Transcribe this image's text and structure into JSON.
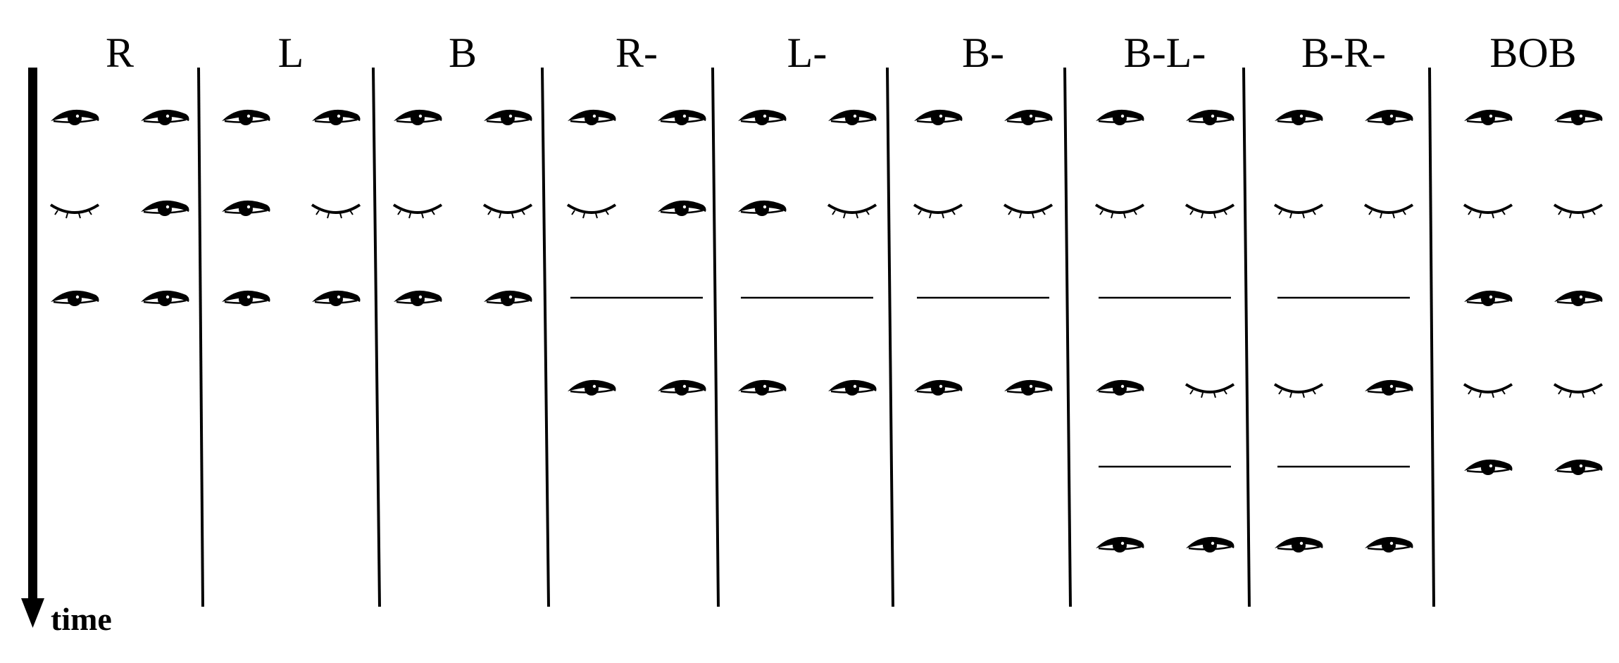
{
  "time_label": "time",
  "columns": [
    {
      "label": "R",
      "rows": [
        "open-open",
        "closed-open",
        "open-open"
      ]
    },
    {
      "label": "L",
      "rows": [
        "open-open",
        "open-closed",
        "open-open"
      ]
    },
    {
      "label": "B",
      "rows": [
        "open-open",
        "closed-closed",
        "open-open"
      ]
    },
    {
      "label": "R-",
      "rows": [
        "open-open",
        "closed-open",
        "pause",
        "open-open"
      ]
    },
    {
      "label": "L-",
      "rows": [
        "open-open",
        "open-closed",
        "pause",
        "open-open"
      ]
    },
    {
      "label": "B-",
      "rows": [
        "open-open",
        "closed-closed",
        "pause",
        "open-open"
      ]
    },
    {
      "label": "B-L-",
      "rows": [
        "open-open",
        "closed-closed",
        "pause",
        "open-closed",
        "pause",
        "open-open"
      ]
    },
    {
      "label": "B-R-",
      "rows": [
        "open-open",
        "closed-closed",
        "pause",
        "closed-open",
        "pause",
        "open-open"
      ]
    },
    {
      "label": "BOB",
      "rows": [
        "open-open",
        "closed-closed",
        "open-open",
        "closed-closed",
        "open-open"
      ]
    }
  ]
}
